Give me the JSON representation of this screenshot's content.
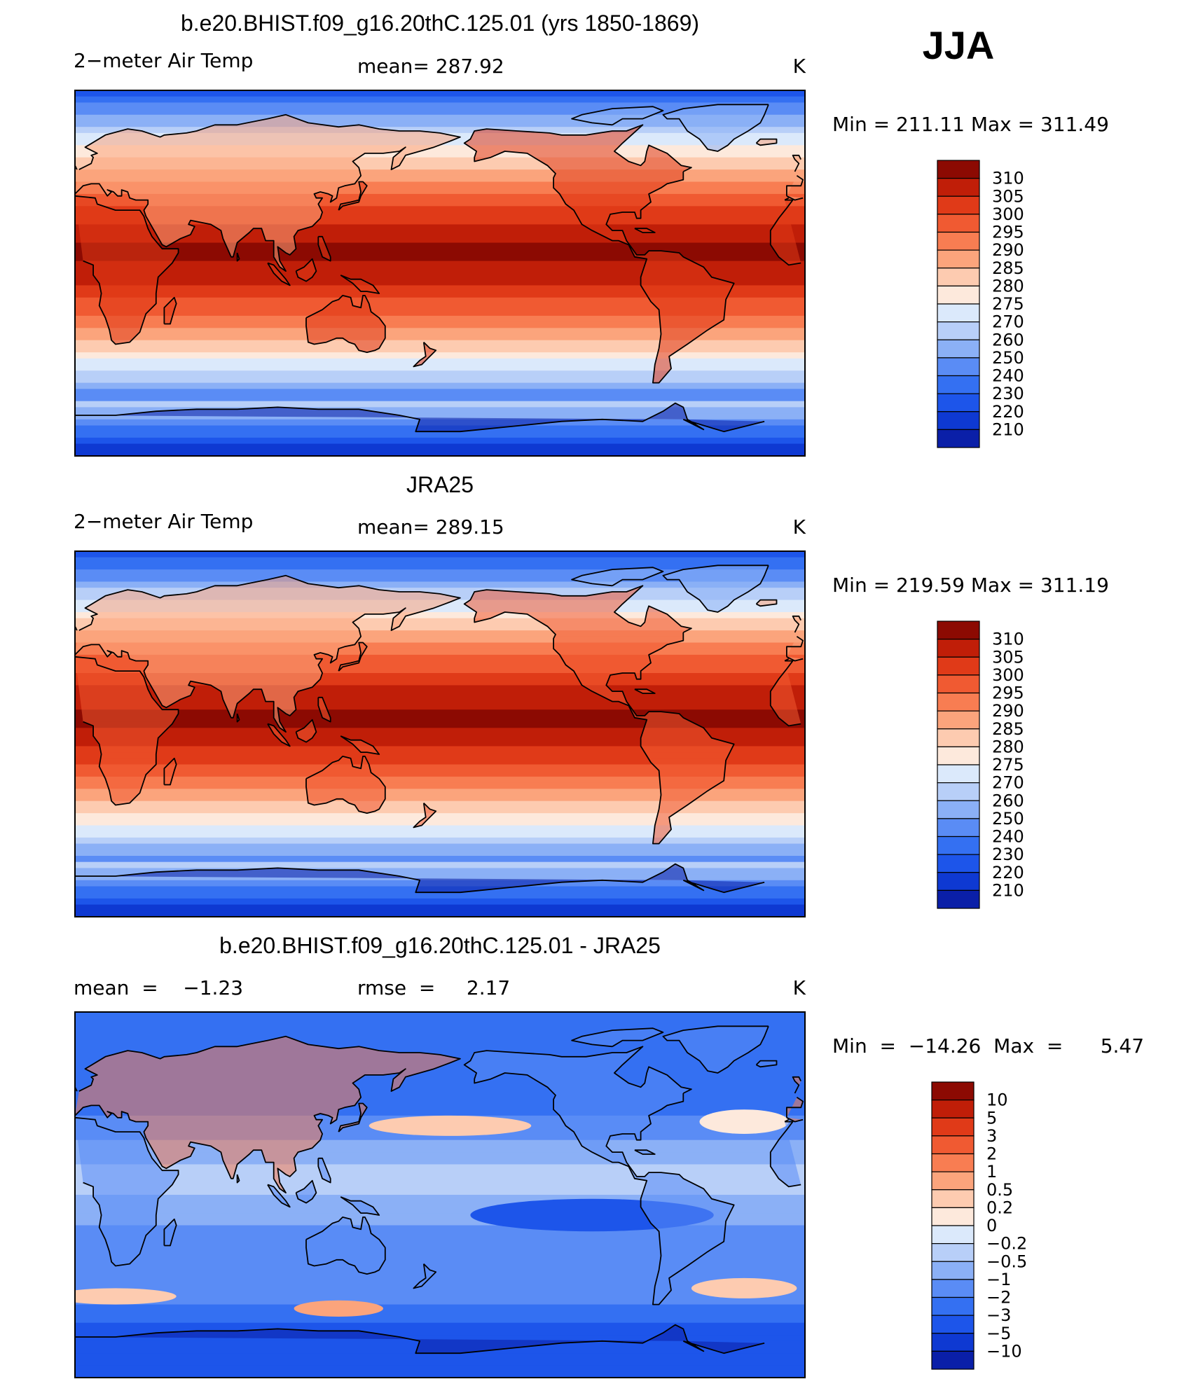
{
  "season": "JJA",
  "colors": {
    "frame": "#000000",
    "coast": "#000000",
    "temp_palette": [
      "#08006e",
      "#0a1fa8",
      "#0e39d2",
      "#1d55ea",
      "#3470f2",
      "#5a8cf5",
      "#8bb0f6",
      "#b8cff8",
      "#dbe9fb",
      "#fde9dc",
      "#fdcbb0",
      "#fba47c",
      "#f87d52",
      "#f05a32",
      "#e03a18",
      "#c01e08",
      "#8c0a02"
    ],
    "diff_palette": [
      "#08006e",
      "#0a1fa8",
      "#0e39d2",
      "#1d55ea",
      "#3470f2",
      "#5a8cf5",
      "#8bb0f6",
      "#b8cff8",
      "#dbe9fb",
      "#fde9dc",
      "#fdcbb0",
      "#fba47c",
      "#f87d52",
      "#f05a32",
      "#e03a18",
      "#c01e08",
      "#8c0a02"
    ]
  },
  "chart_data": [
    {
      "type": "heatmap",
      "panel": "model",
      "title": "b.e20.BHIST.f09_g16.20thC.125.01 (yrs 1850-1869)",
      "left_label": "2−meter Air Temp",
      "center_label": "mean= 287.92",
      "right_label": "K",
      "variable": "2-meter Air Temp",
      "units": "K",
      "mean": 287.92,
      "min": 211.11,
      "max": 311.49,
      "minmax_label": "Min  =  211.11  Max  =  311.49",
      "contour_levels": [
        "210",
        "220",
        "230",
        "240",
        "250",
        "260",
        "270",
        "275",
        "280",
        "285",
        "290",
        "295",
        "300",
        "305",
        "310"
      ],
      "x": {
        "type": "longitude",
        "range": [
          0,
          360
        ]
      },
      "y": {
        "type": "latitude",
        "range": [
          -90,
          90
        ]
      }
    },
    {
      "type": "heatmap",
      "panel": "observations",
      "title": "JRA25",
      "left_label": "2−meter Air Temp",
      "center_label": "mean= 289.15",
      "right_label": "K",
      "variable": "2-meter Air Temp",
      "units": "K",
      "mean": 289.15,
      "min": 219.59,
      "max": 311.19,
      "minmax_label": "Min  =  219.59  Max  =  311.19",
      "contour_levels": [
        "210",
        "220",
        "230",
        "240",
        "250",
        "260",
        "270",
        "275",
        "280",
        "285",
        "290",
        "295",
        "300",
        "305",
        "310"
      ],
      "x": {
        "type": "longitude",
        "range": [
          0,
          360
        ]
      },
      "y": {
        "type": "latitude",
        "range": [
          -90,
          90
        ]
      }
    },
    {
      "type": "heatmap",
      "panel": "difference",
      "title": "b.e20.BHIST.f09_g16.20thC.125.01 - JRA25",
      "left_label": "mean  =    −1.23",
      "center_label": "rmse  =     2.17",
      "right_label": "K",
      "units": "K",
      "mean": -1.23,
      "rmse": 2.17,
      "min": -14.26,
      "max": 5.47,
      "minmax_label": "Min  =  −14.26  Max  =      5.47",
      "contour_levels": [
        "−10",
        "−5",
        "−3",
        "−2",
        "−1",
        "−0.5",
        "−0.2",
        "0",
        "0.2",
        "0.5",
        "1",
        "2",
        "3",
        "5",
        "10"
      ],
      "x": {
        "type": "longitude",
        "range": [
          0,
          360
        ]
      },
      "y": {
        "type": "latitude",
        "range": [
          -90,
          90
        ]
      }
    }
  ]
}
